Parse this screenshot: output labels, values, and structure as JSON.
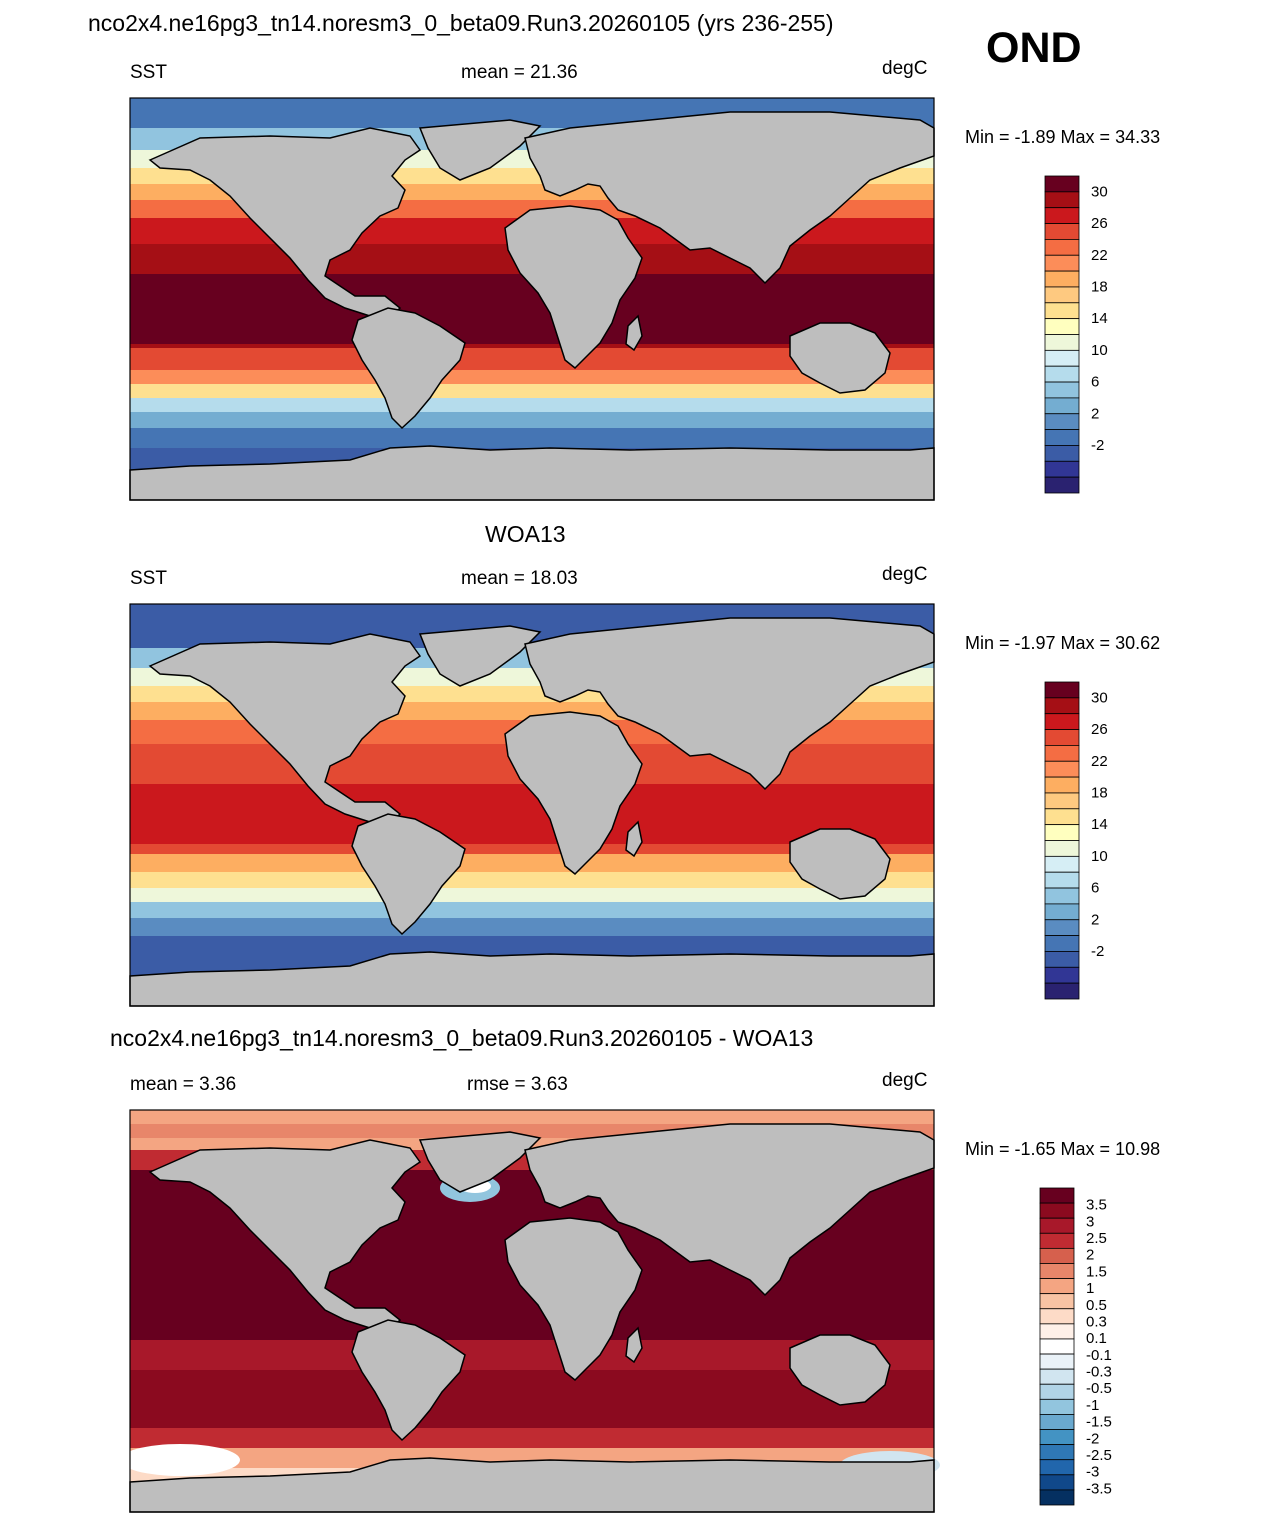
{
  "header": {
    "title": "nco2x4.ne16pg3_tn14.noresm3_0_beta09.Run3.20260105 (yrs 236-255)",
    "season": "OND"
  },
  "chart_data": [
    {
      "type": "heatmap",
      "title": "",
      "left_label": "SST",
      "center_label": "mean =  21.36",
      "units": "degC",
      "minmax": "Min =  -1.89 Max =  34.33",
      "colorbar_ticks": [
        "30",
        "26",
        "22",
        "18",
        "14",
        "10",
        "6",
        "2",
        "-2"
      ],
      "colorbar_colors": [
        "#67001f",
        "#a50f15",
        "#cb181d",
        "#e34a33",
        "#f46d43",
        "#fc8d59",
        "#fdae61",
        "#fec980",
        "#fee090",
        "#ffffbf",
        "#eef7da",
        "#d6eef5",
        "#b5dcec",
        "#91c4df",
        "#74add1",
        "#5a8cc1",
        "#4575b4",
        "#3b5ca6",
        "#313695",
        "#2a2270"
      ]
    },
    {
      "type": "heatmap",
      "title": "WOA13",
      "left_label": "SST",
      "center_label": "mean =  18.03",
      "units": "degC",
      "minmax": "Min =  -1.97 Max =  30.62",
      "colorbar_ticks": [
        "30",
        "26",
        "22",
        "18",
        "14",
        "10",
        "6",
        "2",
        "-2"
      ],
      "colorbar_colors": [
        "#67001f",
        "#a50f15",
        "#cb181d",
        "#e34a33",
        "#f46d43",
        "#fc8d59",
        "#fdae61",
        "#fec980",
        "#fee090",
        "#ffffbf",
        "#eef7da",
        "#d6eef5",
        "#b5dcec",
        "#91c4df",
        "#74add1",
        "#5a8cc1",
        "#4575b4",
        "#3b5ca6",
        "#313695",
        "#2a2270"
      ]
    },
    {
      "type": "heatmap",
      "title": "nco2x4.ne16pg3_tn14.noresm3_0_beta09.Run3.20260105 - WOA13",
      "left_label": "mean =   3.36",
      "center_label": "rmse =   3.63",
      "units": "degC",
      "minmax": "Min =  -1.65 Max =  10.98",
      "colorbar_ticks": [
        "3.5",
        "3",
        "2.5",
        "2",
        "1.5",
        "1",
        "0.5",
        "0.3",
        "0.1",
        "-0.1",
        "-0.3",
        "-0.5",
        "-1",
        "-1.5",
        "-2",
        "-2.5",
        "-3",
        "-3.5"
      ],
      "colorbar_colors": [
        "#67001f",
        "#8b0a1f",
        "#a8182a",
        "#c02b32",
        "#d6604d",
        "#e8866a",
        "#f4a582",
        "#f8c3a4",
        "#fddbc7",
        "#fef0e8",
        "#ffffff",
        "#eaf2f8",
        "#d1e5f0",
        "#b1d4e7",
        "#92c5de",
        "#6aa9cf",
        "#4393c3",
        "#2f78b5",
        "#2166ac",
        "#10488a",
        "#053061"
      ]
    }
  ]
}
